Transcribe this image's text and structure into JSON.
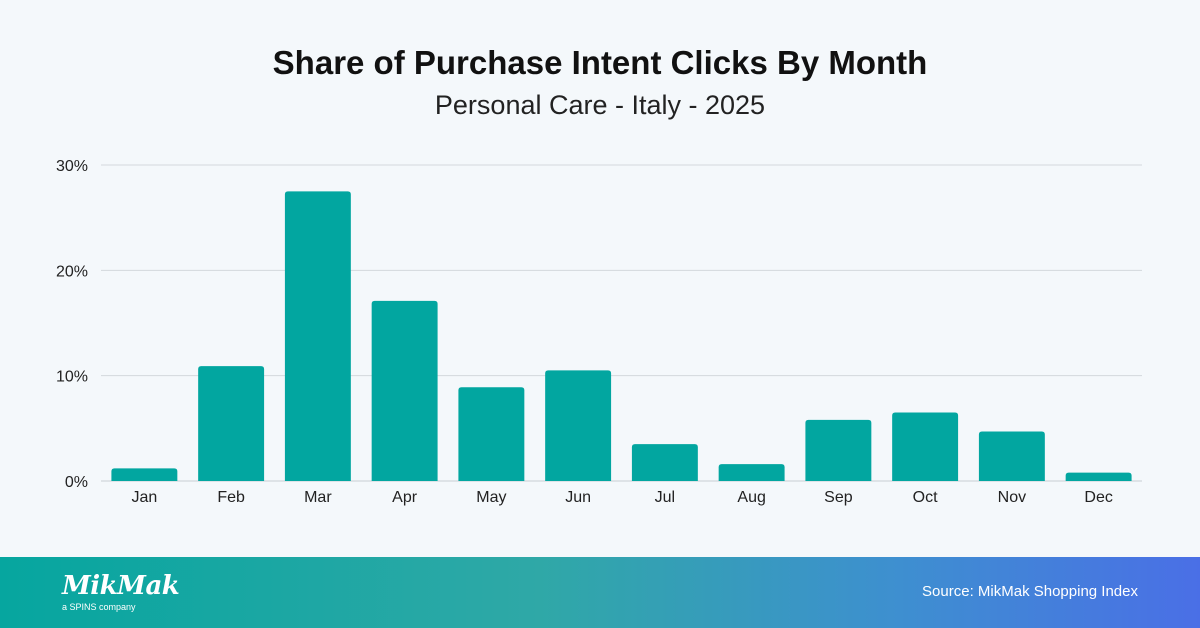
{
  "chart_data": {
    "type": "bar",
    "title": "Share of Purchase Intent Clicks By Month",
    "subtitle": "Personal Care - Italy - 2025",
    "categories": [
      "Jan",
      "Feb",
      "Mar",
      "Apr",
      "May",
      "Jun",
      "Jul",
      "Aug",
      "Sep",
      "Oct",
      "Nov",
      "Dec"
    ],
    "values": [
      1.2,
      10.9,
      27.5,
      17.1,
      8.9,
      10.5,
      3.5,
      1.6,
      5.8,
      6.5,
      4.7,
      0.8
    ],
    "unit": "%",
    "ylim": [
      0,
      30
    ],
    "yticks": [
      0,
      10,
      20,
      30
    ],
    "ytick_labels": [
      "0%",
      "10%",
      "20%",
      "30%"
    ],
    "xlabel": "",
    "ylabel": "",
    "grid": true,
    "bar_color": "#02a6a0"
  },
  "footer": {
    "logo_text": "MikMak",
    "logo_subtext": "a SPINS company",
    "source": "Source: MikMak Shopping Index"
  }
}
